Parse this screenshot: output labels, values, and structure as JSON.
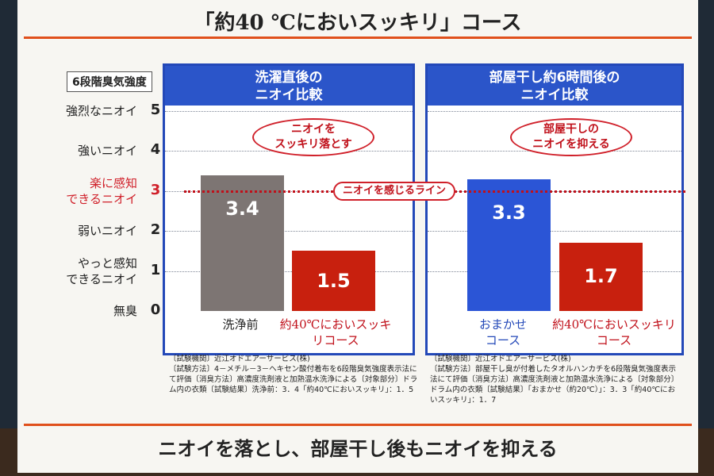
{
  "slide": {
    "title": "「約40 ℃においスッキリ」コース",
    "tagline": "ニオイを落とし、部屋干し後もニオイを抑える",
    "accent_color": "#e0501c"
  },
  "scale": {
    "title": "6段階臭気強度",
    "levels": [
      {
        "value": 5,
        "label_lines": [
          "強烈なニオイ"
        ],
        "number": "5",
        "highlight": false
      },
      {
        "value": 4,
        "label_lines": [
          "強いニオイ"
        ],
        "number": "4",
        "highlight": false
      },
      {
        "value": 3,
        "label_lines": [
          "楽に感知",
          "できるニオイ"
        ],
        "number": "3",
        "highlight": true
      },
      {
        "value": 2,
        "label_lines": [
          "弱いニオイ"
        ],
        "number": "2",
        "highlight": false
      },
      {
        "value": 1,
        "label_lines": [
          "やっと感知",
          "できるニオイ"
        ],
        "number": "1",
        "highlight": false
      },
      {
        "value": 0,
        "label_lines": [
          "無臭"
        ],
        "number": "0",
        "highlight": false
      }
    ]
  },
  "reference": {
    "value": 3,
    "label": "ニオイを感じるライン",
    "color": "#c0101a"
  },
  "chart_data": [
    {
      "type": "bar",
      "title_lines": [
        "洗濯直後の",
        "ニオイ比較"
      ],
      "callout_lines": [
        "ニオイを",
        "スッキリ落とす"
      ],
      "ylim": [
        0,
        5
      ],
      "bars": [
        {
          "category_lines": [
            "洗浄前"
          ],
          "value": 3.4,
          "label": "3.4",
          "color": "#7d7573",
          "label_color": "#222222"
        },
        {
          "category_lines": [
            "約40℃においスッキリコース"
          ],
          "value": 1.5,
          "label": "1.5",
          "color": "#c8200e",
          "label_color": "#c0101a"
        }
      ],
      "note": "〔試験機関〕近江オドエアーサービス(株)\n〔試験方法〕4－メチル－3－ヘキセン酸付着布を6段階臭気強度表示法にて評価〔消臭方法〕高濃度洗剤液と加熱温水洗浄による〔対象部分〕ドラム内の衣類〔試験結果〕洗浄前：3．4「約40℃においスッキリ」：1．5"
    },
    {
      "type": "bar",
      "title_lines": [
        "部屋干し約6時間後の",
        "ニオイ比較"
      ],
      "callout_lines": [
        "部屋干しの",
        "ニオイを抑える"
      ],
      "ylim": [
        0,
        5
      ],
      "bars": [
        {
          "category_lines": [
            "おまかせ",
            "コース"
          ],
          "value": 3.3,
          "label": "3.3",
          "color": "#2b55d6",
          "label_color": "#2348b8"
        },
        {
          "category_lines": [
            "約40℃においスッキリコース"
          ],
          "value": 1.7,
          "label": "1.7",
          "color": "#c8200e",
          "label_color": "#c0101a"
        }
      ],
      "note": "〔試験機関〕近江オドエアーサービス(株)\n〔試験方法〕部屋干し臭が付着したタオルハンカチを6段階臭気強度表示法にて評価〔消臭方法〕高濃度洗剤液と加熱温水洗浄による〔対象部分〕ドラム内の衣類〔試験結果〕「おまかせ（約20℃）」：3．3「約40℃においスッキリ」：1．7"
    }
  ]
}
